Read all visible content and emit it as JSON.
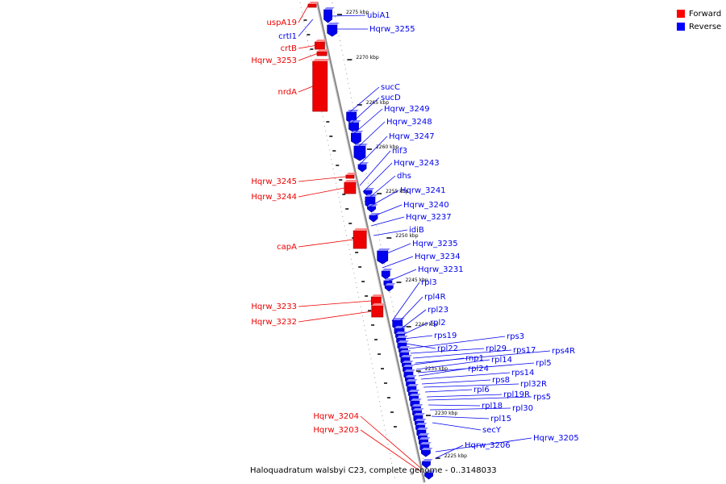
{
  "caption": "Haloquadratum walsbyi C23, complete genome - 0..3148033",
  "legend": [
    {
      "label": "Forward",
      "color": "#ff0000"
    },
    {
      "label": "Reverse",
      "color": "#0000ff"
    }
  ],
  "colors": {
    "forward": "#ee0000",
    "reverse": "#0000ee",
    "axis": "#888888"
  },
  "ticks": [
    {
      "label": "2275 kbp",
      "value": 2275
    },
    {
      "label": "2270 kbp",
      "value": 2270
    },
    {
      "label": "2265 kbp",
      "value": 2265
    },
    {
      "label": "2260 kbp",
      "value": 2260
    },
    {
      "label": "2255 kbp",
      "value": 2255
    },
    {
      "label": "2250 kbp",
      "value": 2250
    },
    {
      "label": "2245 kbp",
      "value": 2245
    },
    {
      "label": "2240 kbp",
      "value": 2240
    },
    {
      "label": "2235 kbp",
      "value": 2235
    },
    {
      "label": "2230 kbp",
      "value": 2230
    },
    {
      "label": "2225 kbp",
      "value": 2225
    }
  ],
  "forward_genes": [
    "uspA19",
    "crtI1",
    "crtB",
    "Hqrw_3253",
    "nrdA",
    "Hqrw_3245",
    "Hqrw_3244",
    "capA",
    "Hqrw_3233",
    "Hqrw_3232",
    "Hqrw_3204",
    "Hqrw_3203"
  ],
  "reverse_genes": [
    "ubiA1",
    "Hqrw_3255",
    "sucC",
    "sucD",
    "Hqrw_3249",
    "Hqrw_3248",
    "Hqrw_3247",
    "nif3",
    "Hqrw_3243",
    "dhs",
    "Hqrw_3241",
    "Hqrw_3240",
    "Hqrw_3237",
    "idiB",
    "Hqrw_3235",
    "Hqrw_3234",
    "Hqrw_3231",
    "rpl3",
    "rpl4R",
    "rpl23",
    "rpl2",
    "rps19",
    "rpl22",
    "rps3",
    "rpl29",
    "rps17",
    "rps4R",
    "rnp1",
    "rpl14",
    "rpl5",
    "rpl24",
    "rps14",
    "rps8",
    "rpl32R",
    "rpl6",
    "rpl19R",
    "rps5",
    "rpl18",
    "rpl30",
    "rpl15",
    "secY",
    "Hqrw_3205",
    "Hqrw_3206"
  ]
}
